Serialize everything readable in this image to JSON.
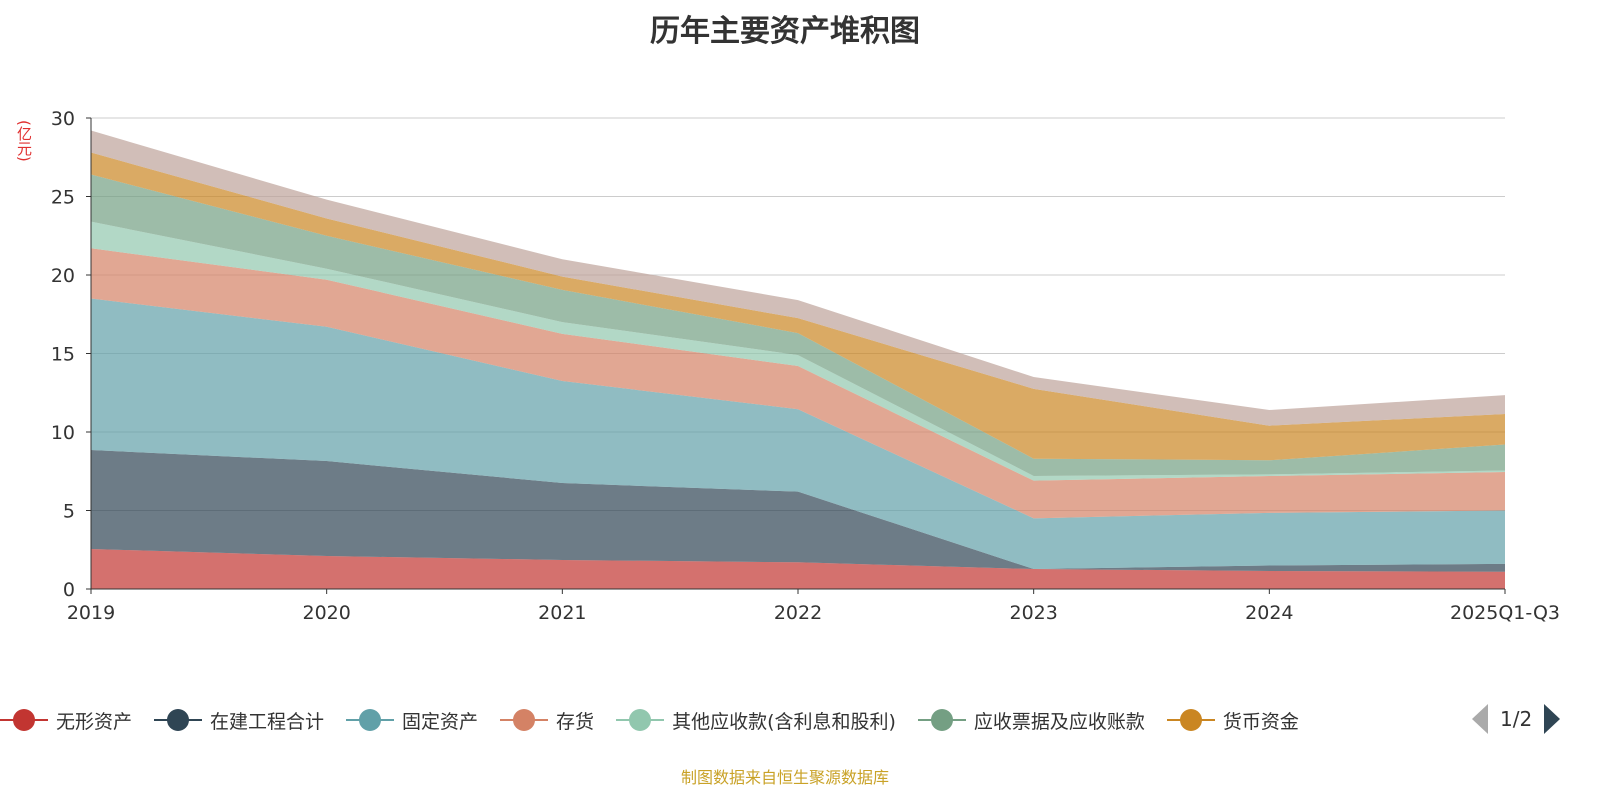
{
  "chart_data": {
    "type": "area",
    "stacked": true,
    "title": "历年主要资产堆积图",
    "ylabel": "(亿元)",
    "xlabel": "",
    "ylim": [
      0,
      30
    ],
    "yticks": [
      "0",
      "5",
      "10",
      "15",
      "20",
      "25",
      "30"
    ],
    "categories": [
      "2019",
      "2020",
      "2021",
      "2022",
      "2023",
      "2024",
      "2025Q1-Q3"
    ],
    "grid": true,
    "legend_position": "bottom",
    "series": [
      {
        "name": "无形资产",
        "color": "#c23531",
        "values": [
          2.55,
          2.1,
          1.85,
          1.7,
          1.27,
          1.15,
          1.1
        ]
      },
      {
        "name": "在建工程合计",
        "color": "#2f4554",
        "values": [
          6.3,
          6.05,
          4.9,
          4.5,
          0.0,
          0.35,
          0.5
        ]
      },
      {
        "name": "固定资产",
        "color": "#61a0a8",
        "values": [
          9.65,
          8.55,
          6.5,
          5.25,
          3.23,
          3.35,
          3.4
        ]
      },
      {
        "name": "存货",
        "color": "#d48265",
        "values": [
          3.2,
          3.0,
          3.0,
          2.75,
          2.4,
          2.35,
          2.45
        ]
      },
      {
        "name": "其他应收款(含利息和股利)",
        "color": "#91c7ae",
        "values": [
          1.7,
          0.7,
          0.75,
          0.7,
          0.3,
          0.1,
          0.1
        ]
      },
      {
        "name": "应收票据及应收账款",
        "color": "#749f83",
        "values": [
          3.0,
          2.1,
          2.05,
          1.4,
          1.1,
          0.9,
          1.65
        ]
      },
      {
        "name": "货币资金",
        "color": "#ca8622",
        "values": [
          1.4,
          1.1,
          0.85,
          0.95,
          4.45,
          2.2,
          1.95
        ]
      },
      {
        "name": "",
        "color": "#bda29a",
        "values": [
          1.4,
          1.2,
          1.1,
          1.15,
          0.75,
          1.0,
          1.2
        ]
      }
    ]
  },
  "legend": {
    "page": "1/2"
  },
  "source": "制图数据来自恒生聚源数据库"
}
